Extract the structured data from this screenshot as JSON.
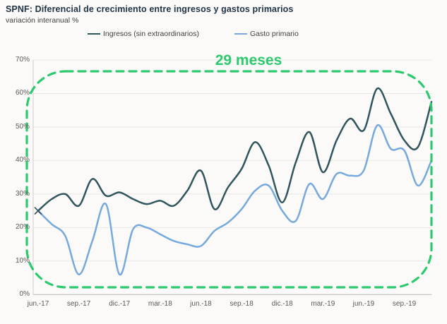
{
  "header": {
    "title": "SPNF: Diferencial de crecimiento entre ingresos y gastos primarios",
    "subtitle": "variación interanual %"
  },
  "legend": {
    "items": [
      {
        "label": "Ingresos (sin extraordinarios)",
        "color": "#31555C"
      },
      {
        "label": "Gasto primario",
        "color": "#76A9DC"
      }
    ]
  },
  "annotation": {
    "label": "29 meses",
    "color": "#2CC96F",
    "style": "dashed-rounded-box"
  },
  "chart_data": {
    "type": "line",
    "title": "SPNF: Diferencial de crecimiento entre ingresos y gastos primarios",
    "ylabel": "variación interanual %",
    "ylim": [
      0,
      70
    ],
    "grid": "horizontal",
    "legend_position": "top",
    "y_ticks": [
      0,
      10,
      20,
      30,
      40,
      50,
      60,
      70
    ],
    "y_tick_labels": [
      "0%",
      "10%",
      "20%",
      "30%",
      "40%",
      "50%",
      "60%",
      "70%"
    ],
    "x_tick_indices": [
      0,
      3,
      6,
      9,
      12,
      15,
      18,
      21,
      24,
      27
    ],
    "x_tick_labels": [
      "jun.-17",
      "sep.-17",
      "dic.-17",
      "mar.-18",
      "jun.-18",
      "sep.-18",
      "dic.-18",
      "mar.-19",
      "jun.-19",
      "sep.-19"
    ],
    "categories": [
      "jun-17",
      "jul-17",
      "ago-17",
      "sep-17",
      "oct-17",
      "nov-17",
      "dic-17",
      "ene-18",
      "feb-18",
      "mar-18",
      "abr-18",
      "may-18",
      "jun-18",
      "jul-18",
      "ago-18",
      "sep-18",
      "oct-18",
      "nov-18",
      "dic-18",
      "ene-19",
      "feb-19",
      "mar-19",
      "abr-19",
      "may-19",
      "jun-19",
      "jul-19",
      "ago-19",
      "sep-19",
      "oct-19",
      "nov-19"
    ],
    "series": [
      {
        "name": "Ingresos (sin extraordinarios)",
        "color": "#31555C",
        "values": [
          25,
          28.5,
          30,
          26.5,
          34.5,
          29.5,
          30.5,
          28.5,
          27,
          28,
          26.5,
          31,
          37,
          25.5,
          32,
          37.5,
          45.5,
          38.5,
          27.5,
          39.5,
          48.5,
          36.5,
          46,
          52.5,
          49,
          61.5,
          54,
          46,
          44,
          57.5
        ]
      },
      {
        "name": "Gasto primario",
        "color": "#76A9DC",
        "values": [
          25,
          21,
          17.5,
          6,
          16,
          27,
          6,
          19.5,
          20,
          18,
          16,
          15,
          14.5,
          19,
          21.5,
          25.5,
          31,
          32.5,
          25,
          22,
          33,
          28.5,
          36,
          35.5,
          37,
          50.5,
          43.5,
          43,
          32.5,
          40
        ]
      }
    ]
  }
}
